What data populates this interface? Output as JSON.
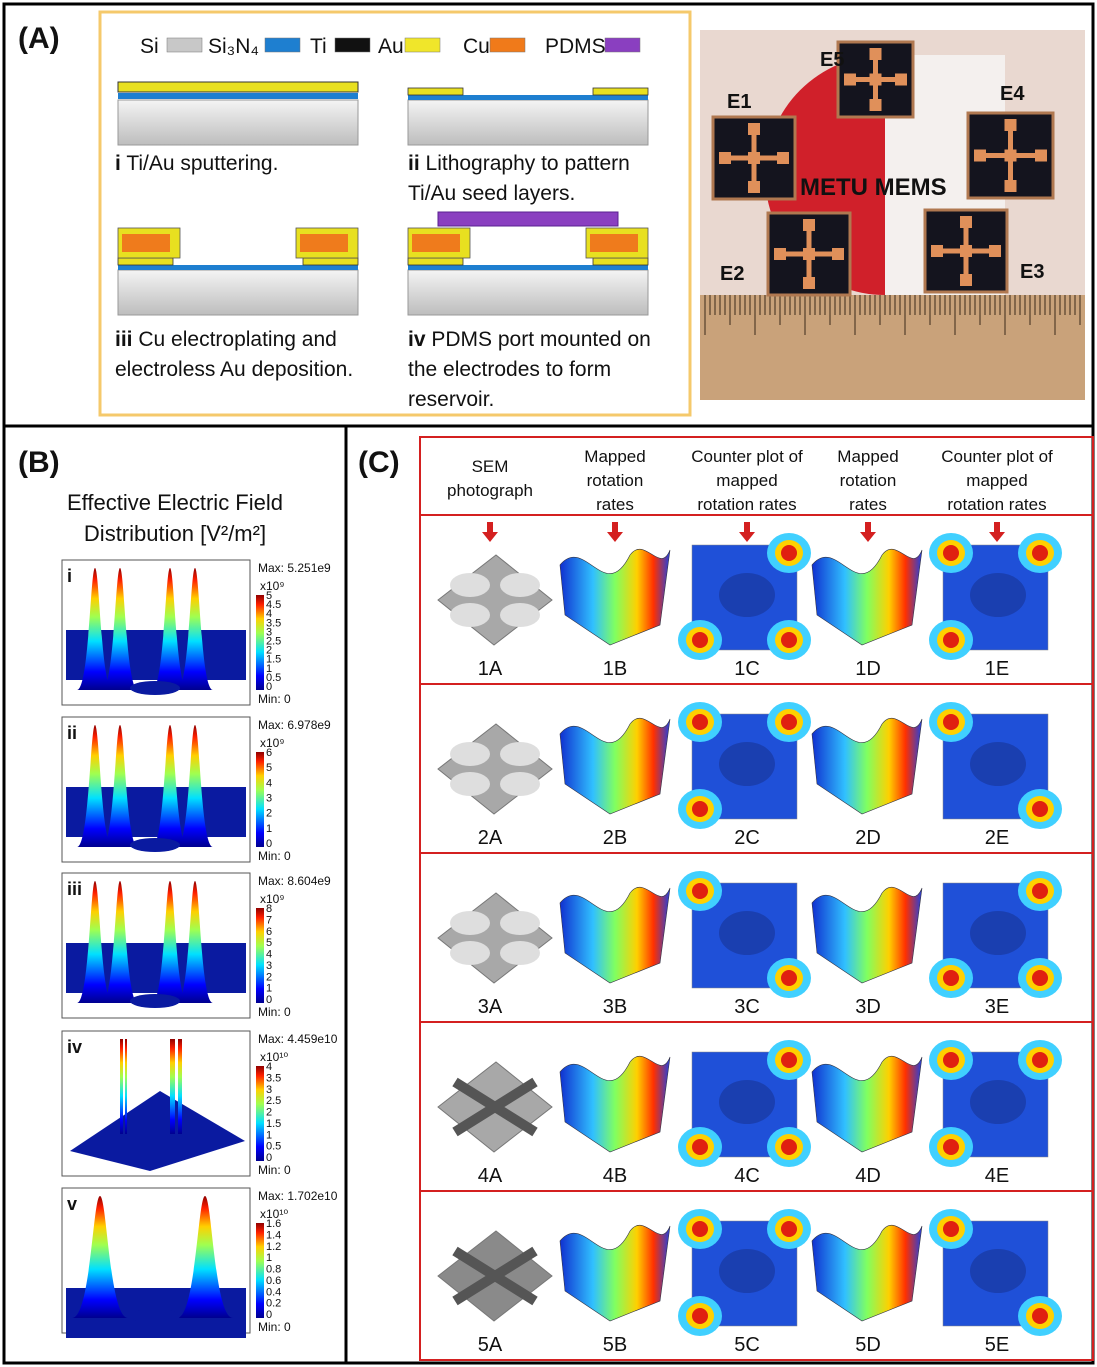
{
  "panel_a": {
    "label": "(A)",
    "legend": [
      "Si",
      "Si₃N₄",
      "Ti",
      "Au",
      "Cu",
      "PDMS"
    ],
    "steps": [
      {
        "numeral": "i",
        "lines": [
          "Ti/Au sputtering."
        ]
      },
      {
        "numeral": "ii",
        "lines": [
          "Lithography to pattern",
          "Ti/Au seed layers."
        ]
      },
      {
        "numeral": "iii",
        "lines": [
          "Cu electroplating and",
          "electroless Au deposition."
        ]
      },
      {
        "numeral": "iv",
        "lines": [
          "PDMS port mounted on",
          "the electrodes to form",
          "reservoir."
        ]
      }
    ],
    "photo_labels": [
      "E1",
      "E2",
      "E3",
      "E4",
      "E5",
      "METU MEMS"
    ]
  },
  "panel_b": {
    "label": "(B)",
    "title": [
      "Effective Electric Field",
      "Distribution [V²/m²]"
    ],
    "plots": [
      {
        "label": "i",
        "max": "Max: 5.251e9",
        "exponent": "x10⁹",
        "ticks": [
          "5",
          "4.5",
          "4",
          "3.5",
          "3",
          "2.5",
          "2",
          "1.5",
          "1",
          "0.5",
          "0"
        ],
        "min": "Min: 0"
      },
      {
        "label": "ii",
        "max": "Max: 6.978e9",
        "exponent": "x10⁹",
        "ticks": [
          "6",
          "5",
          "4",
          "3",
          "2",
          "1",
          "0"
        ],
        "min": "Min: 0"
      },
      {
        "label": "iii",
        "max": "Max: 8.604e9",
        "exponent": "x10⁹",
        "ticks": [
          "8",
          "7",
          "6",
          "5",
          "4",
          "3",
          "2",
          "1",
          "0"
        ],
        "min": "Min: 0"
      },
      {
        "label": "iv",
        "max": "Max: 4.459e10",
        "exponent": "x10¹⁰",
        "ticks": [
          "4",
          "3.5",
          "3",
          "2.5",
          "2",
          "1.5",
          "1",
          "0.5",
          "0"
        ],
        "min": "Min: 0"
      },
      {
        "label": "v",
        "max": "Max: 1.702e10",
        "exponent": "x10¹⁰",
        "ticks": [
          "1.6",
          "1.4",
          "1.2",
          "1",
          "0.8",
          "0.6",
          "0.4",
          "0.2",
          "0"
        ],
        "min": "Min: 0"
      }
    ]
  },
  "panel_c": {
    "label": "(C)",
    "headers": [
      [
        "SEM",
        "photograph"
      ],
      [
        "Mapped",
        "rotation",
        "rates"
      ],
      [
        "Counter plot of",
        "mapped",
        "rotation rates"
      ],
      [
        "Mapped",
        "rotation",
        "rates"
      ],
      [
        "Counter plot of",
        "mapped",
        "rotation rates"
      ]
    ],
    "rows": [
      [
        "1A",
        "1B",
        "1C",
        "1D",
        "1E"
      ],
      [
        "2A",
        "2B",
        "2C",
        "2D",
        "2E"
      ],
      [
        "3A",
        "3B",
        "3C",
        "3D",
        "3E"
      ],
      [
        "4A",
        "4B",
        "4C",
        "4D",
        "4E"
      ],
      [
        "5A",
        "5B",
        "5C",
        "5D",
        "5E"
      ]
    ]
  }
}
